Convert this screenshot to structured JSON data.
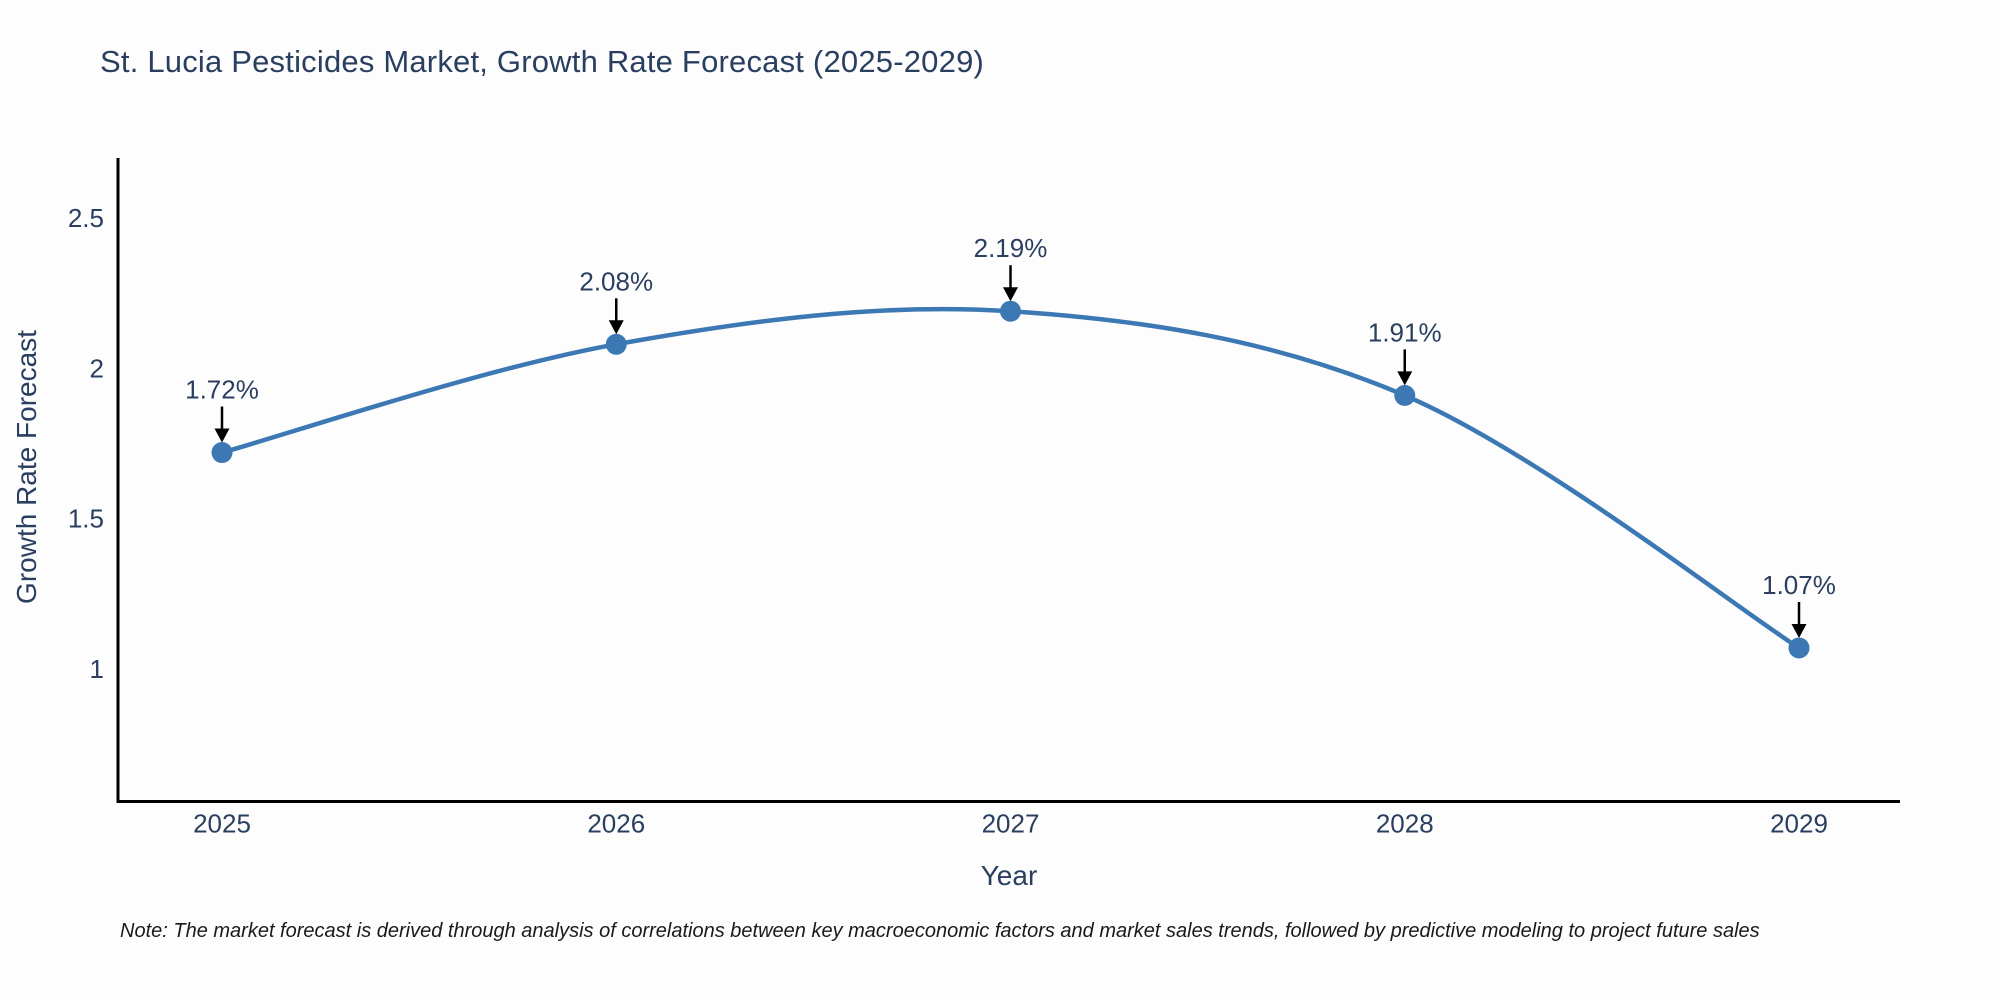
{
  "page": {
    "title": "St. Lucia Pesticides Market, Growth Rate Forecast (2025-2029)",
    "note": "Note: The market forecast is derived through analysis of correlations between key macroeconomic factors and market sales trends, followed by predictive modeling to project future sales"
  },
  "chart_data": {
    "type": "line",
    "title": "St. Lucia Pesticides Market, Growth Rate Forecast (2025-2029)",
    "xlabel": "Year",
    "ylabel": "Growth Rate Forecast",
    "categories": [
      "2025",
      "2026",
      "2027",
      "2028",
      "2029"
    ],
    "values": [
      1.72,
      2.08,
      2.19,
      1.91,
      1.07
    ],
    "point_labels": [
      "1.72%",
      "2.08%",
      "2.19%",
      "1.91%",
      "1.07%"
    ],
    "ytick_values": [
      2.5,
      2,
      1.5,
      1
    ],
    "ytick_labels": [
      "2.5",
      "2",
      "1.5",
      "1"
    ],
    "ylim": [
      0.55,
      2.72
    ],
    "grid": false,
    "legend": "none",
    "smooth": true,
    "line_color": "#3c78b4",
    "marker_color": "#3c78b4",
    "annotation_arrow_color": "#000000",
    "text_color": "#2a3f5f",
    "axis_color": "#000000"
  }
}
